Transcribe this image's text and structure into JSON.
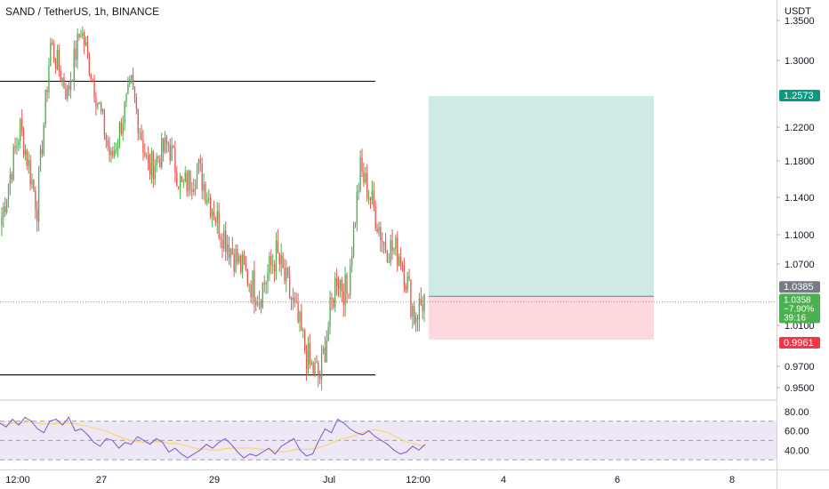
{
  "header": {
    "title": "SAND / TetherUS, 1h, BINANCE"
  },
  "price_scale": {
    "currency": "USDT",
    "ticks": [
      "1.3500",
      "1.3000",
      "1.2200",
      "1.1800",
      "1.1400",
      "1.1000",
      "1.0700",
      "1.0100",
      "0.9700",
      "0.9500"
    ]
  },
  "labels": {
    "take_profit": "1.2573",
    "entry": "1.0385",
    "current_price": "1.0358",
    "current_change": "−7.90%",
    "countdown": "39:16",
    "stop_loss": "0.9961"
  },
  "rsi_scale": {
    "ticks": [
      "80.00",
      "60.00",
      "40.00"
    ]
  },
  "time_axis": {
    "ticks": [
      "12:00",
      "27",
      "29",
      "Jul",
      "12:00",
      "4",
      "6",
      "8"
    ]
  },
  "colors": {
    "up": "#4caf50",
    "down": "#ef5350",
    "profit_zone": "#cdebe4",
    "loss_zone": "#fbd9dc",
    "take_profit_label": "#089981",
    "entry_label": "#787b86",
    "stop_label": "#f23645",
    "rsi_line": "#7e57c2",
    "rsi_ma": "#f5d76e",
    "rsi_band": "#ede7f6"
  },
  "chart_data": {
    "type": "candlestick",
    "title": "SAND / TetherUS, 1h, BINANCE",
    "y_unit": "USDT",
    "ylim": [
      0.94,
      1.36
    ],
    "levels": {
      "resistance": 1.275,
      "support": 0.962,
      "take_profit": 1.2573,
      "entry": 1.0385,
      "stop_loss": 0.9961,
      "last_price": 1.0358
    },
    "ohlc_segments": [
      {
        "from": 1.11,
        "to": 1.22,
        "bars": 12
      },
      {
        "from": 1.22,
        "to": 1.13,
        "bars": 10
      },
      {
        "from": 1.13,
        "to": 1.32,
        "bars": 8
      },
      {
        "from": 1.32,
        "to": 1.26,
        "bars": 10
      },
      {
        "from": 1.26,
        "to": 1.34,
        "bars": 8
      },
      {
        "from": 1.34,
        "to": 1.27,
        "bars": 8
      },
      {
        "from": 1.27,
        "to": 1.18,
        "bars": 10
      },
      {
        "from": 1.18,
        "to": 1.27,
        "bars": 12
      },
      {
        "from": 1.27,
        "to": 1.17,
        "bars": 10
      },
      {
        "from": 1.17,
        "to": 1.2,
        "bars": 12
      },
      {
        "from": 1.2,
        "to": 1.15,
        "bars": 8
      },
      {
        "from": 1.15,
        "to": 1.17,
        "bars": 10
      },
      {
        "from": 1.17,
        "to": 1.11,
        "bars": 12
      },
      {
        "from": 1.11,
        "to": 1.07,
        "bars": 12
      },
      {
        "from": 1.07,
        "to": 1.04,
        "bars": 12
      },
      {
        "from": 1.04,
        "to": 1.08,
        "bars": 10
      },
      {
        "from": 1.08,
        "to": 1.03,
        "bars": 10
      },
      {
        "from": 1.03,
        "to": 0.97,
        "bars": 10
      },
      {
        "from": 0.97,
        "to": 0.96,
        "bars": 6
      },
      {
        "from": 0.96,
        "to": 1.06,
        "bars": 10
      },
      {
        "from": 1.06,
        "to": 1.04,
        "bars": 6
      },
      {
        "from": 1.04,
        "to": 1.17,
        "bars": 8
      },
      {
        "from": 1.17,
        "to": 1.14,
        "bars": 6
      },
      {
        "from": 1.14,
        "to": 1.09,
        "bars": 8
      },
      {
        "from": 1.09,
        "to": 1.08,
        "bars": 10
      },
      {
        "from": 1.08,
        "to": 1.02,
        "bars": 8
      },
      {
        "from": 1.02,
        "to": 1.036,
        "bars": 6
      }
    ],
    "rsi": {
      "ylim": [
        20,
        90
      ],
      "bands": [
        70,
        50,
        30
      ],
      "values": [
        68,
        64,
        72,
        66,
        74,
        70,
        62,
        58,
        70,
        72,
        66,
        74,
        60,
        62,
        56,
        48,
        44,
        52,
        50,
        42,
        48,
        46,
        54,
        50,
        46,
        52,
        48,
        38,
        42,
        36,
        32,
        36,
        40,
        46,
        42,
        48,
        52,
        46,
        38,
        32,
        36,
        34,
        38,
        42,
        36,
        44,
        48,
        52,
        40,
        34,
        36,
        50,
        62,
        58,
        72,
        68,
        62,
        58,
        56,
        60,
        54,
        50,
        46,
        40,
        36,
        38,
        44,
        40,
        46
      ]
    }
  }
}
